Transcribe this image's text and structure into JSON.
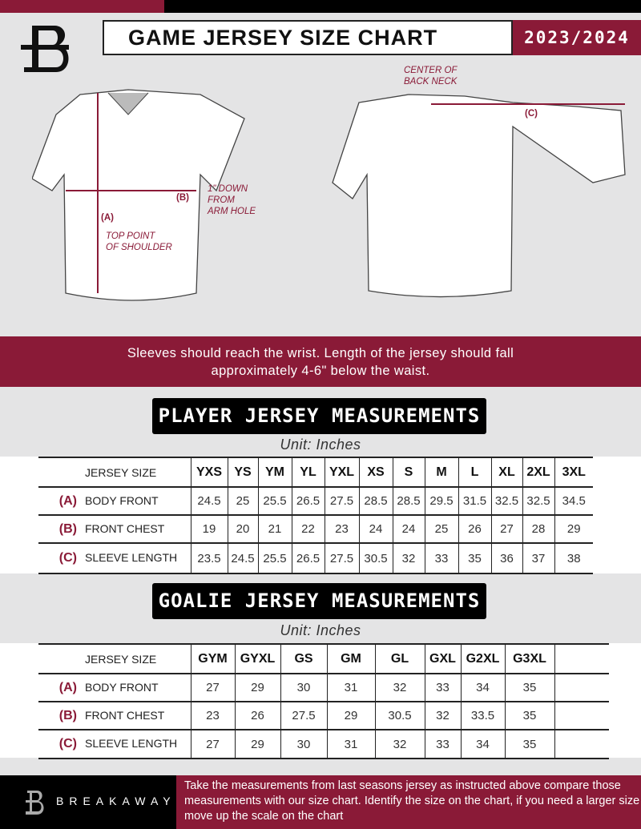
{
  "header": {
    "title": "GAME JERSEY SIZE CHART",
    "season": "2023/2024"
  },
  "diagram": {
    "label_a": "(A)",
    "label_b": "(B)",
    "label_c": "(C)",
    "note_a": "TOP POINT\nOF SHOULDER",
    "note_b": "1\" DOWN\nFROM\nARM HOLE",
    "note_c": "CENTER OF\nBACK NECK"
  },
  "banner": {
    "line1": "Sleeves should reach the wrist. Length of the jersey should fall",
    "line2": "approximately 4-6\" below the waist."
  },
  "player": {
    "heading": "PLAYER JERSEY MEASUREMENTS",
    "unit": "Unit: Inches",
    "size_label": "JERSEY SIZE",
    "sizes": [
      "YXS",
      "YS",
      "YM",
      "YL",
      "YXL",
      "XS",
      "S",
      "M",
      "L",
      "XL",
      "2XL",
      "3XL"
    ],
    "rows": [
      {
        "letter": "(A)",
        "name": "BODY FRONT",
        "values": [
          "24.5",
          "25",
          "25.5",
          "26.5",
          "27.5",
          "28.5",
          "28.5",
          "29.5",
          "31.5",
          "32.5",
          "32.5",
          "34.5"
        ]
      },
      {
        "letter": "(B)",
        "name": "FRONT CHEST",
        "values": [
          "19",
          "20",
          "21",
          "22",
          "23",
          "24",
          "24",
          "25",
          "26",
          "27",
          "28",
          "29"
        ]
      },
      {
        "letter": "(C)",
        "name": "SLEEVE LENGTH",
        "values": [
          "23.5",
          "24.5",
          "25.5",
          "26.5",
          "27.5",
          "30.5",
          "32",
          "33",
          "35",
          "36",
          "37",
          "38"
        ]
      }
    ]
  },
  "goalie": {
    "heading": "GOALIE JERSEY MEASUREMENTS",
    "unit": "Unit: Inches",
    "size_label": "JERSEY SIZE",
    "sizes": [
      "GYM",
      "GYXL",
      "GS",
      "GM",
      "GL",
      "GXL",
      "G2XL",
      "G3XL",
      ""
    ],
    "rows": [
      {
        "letter": "(A)",
        "name": "BODY FRONT",
        "values": [
          "27",
          "29",
          "30",
          "31",
          "32",
          "33",
          "34",
          "35",
          ""
        ]
      },
      {
        "letter": "(B)",
        "name": "FRONT CHEST",
        "values": [
          "23",
          "26",
          "27.5",
          "29",
          "30.5",
          "32",
          "33.5",
          "35",
          ""
        ]
      },
      {
        "letter": "(C)",
        "name": "SLEEVE LENGTH",
        "values": [
          "27",
          "29",
          "30",
          "31",
          "32",
          "33",
          "34",
          "35",
          ""
        ]
      }
    ]
  },
  "footer": {
    "brand": "BREAKAWAY",
    "text": "Take the measurements from last seasons jersey as instructed above compare those measurements  with our size chart. Identify the size on the chart, if you need a larger size move up the scale on the chart"
  },
  "colors": {
    "accent": "#8a1a37",
    "dark": "#000000",
    "background": "#e4e4e5"
  }
}
